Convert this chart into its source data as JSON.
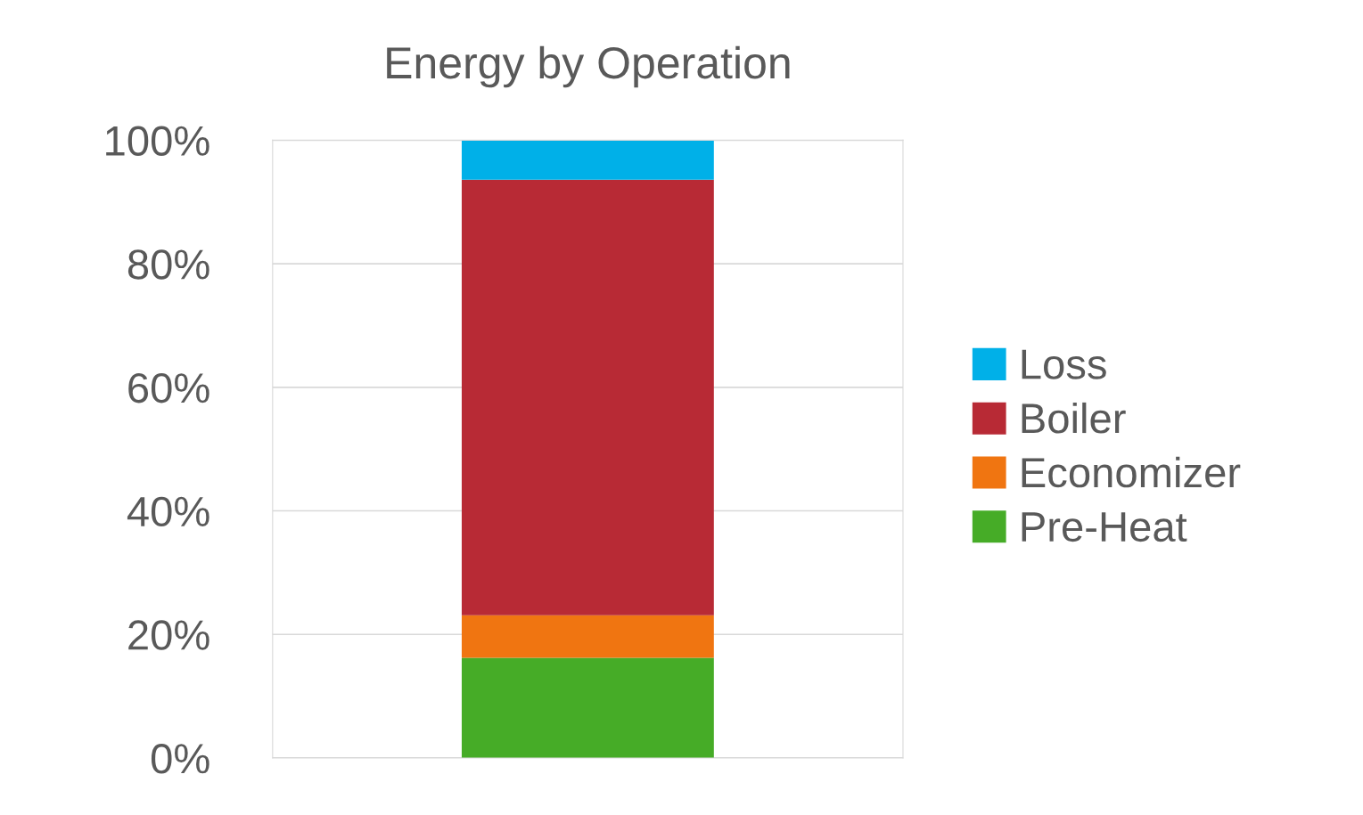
{
  "chart_data": {
    "type": "bar",
    "title": "Energy by Operation",
    "stacked": true,
    "categories": [
      null
    ],
    "series": [
      {
        "name": "Pre-Heat",
        "color": "#46ac27",
        "values": [
          16.2
        ]
      },
      {
        "name": "Economizer",
        "color": "#f07511",
        "values": [
          6.9
        ]
      },
      {
        "name": "Boiler",
        "color": "#b82a35",
        "values": [
          70.5
        ]
      },
      {
        "name": "Loss",
        "color": "#00b0e8",
        "values": [
          6.4
        ]
      }
    ],
    "ylim": [
      0,
      100
    ],
    "yticks": [
      {
        "value": 0,
        "label": "0%"
      },
      {
        "value": 20,
        "label": "20%"
      },
      {
        "value": 40,
        "label": "40%"
      },
      {
        "value": 60,
        "label": "60%"
      },
      {
        "value": 80,
        "label": "80%"
      },
      {
        "value": 100,
        "label": "100%"
      }
    ],
    "grid": "y",
    "legend": "right"
  }
}
